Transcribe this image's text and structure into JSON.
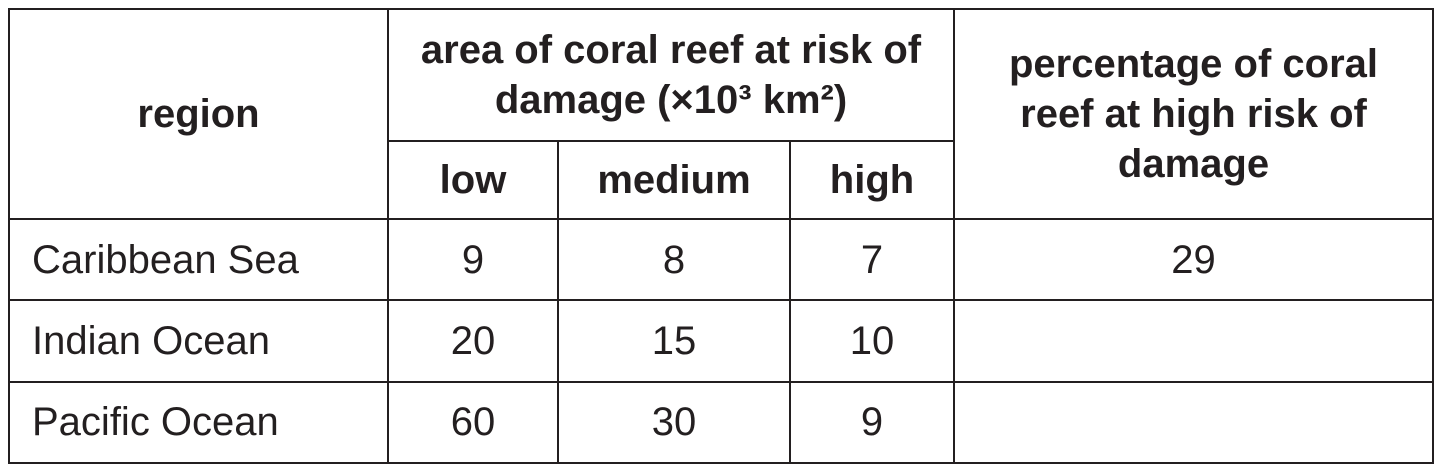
{
  "table": {
    "header": {
      "region": "region",
      "area": "area of coral reef at risk of damage (×10³ km²)",
      "low": "low",
      "medium": "medium",
      "high": "high",
      "percentage": "percentage of coral reef at high risk of damage"
    },
    "rows": [
      [
        "Caribbean Sea",
        9,
        8,
        7,
        29
      ],
      [
        "Indian Ocean",
        20,
        15,
        10,
        null
      ],
      [
        "Pacific Ocean",
        60,
        30,
        9,
        null
      ]
    ]
  }
}
